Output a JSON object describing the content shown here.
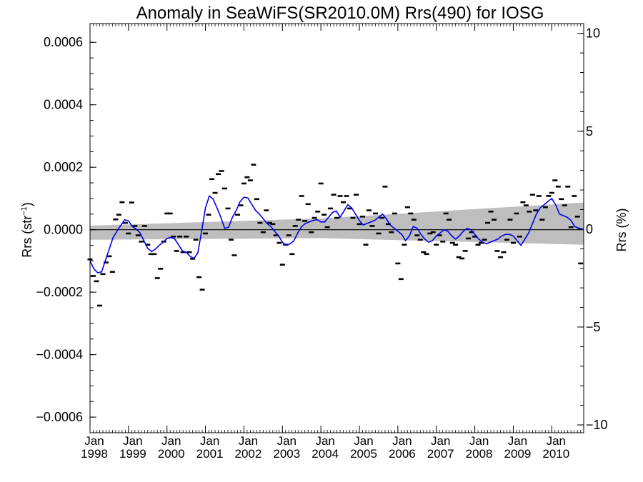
{
  "chart_data": {
    "type": "scatter",
    "title": "Anomaly in SeaWiFS(SR2010.0M) Rrs(490) for IOSG",
    "ylabel_left": {
      "base": "Rrs (str",
      "sup": "−1",
      "end": ")"
    },
    "ylabel_right": "Rrs (%)",
    "xlim": [
      1998.0,
      2010.83
    ],
    "ylim_left": [
      -0.00065,
      0.00066
    ],
    "ylim_right": [
      -10.4,
      10.5
    ],
    "yticks_left": [
      {
        "value": 0.0006,
        "label": "0.0006"
      },
      {
        "value": 0.0004,
        "label": "0.0004"
      },
      {
        "value": 0.0002,
        "label": "0.0002"
      },
      {
        "value": 0.0,
        "label": "0.0000"
      },
      {
        "value": -0.0002,
        "label": "−0.0002"
      },
      {
        "value": -0.0004,
        "label": "−0.0004"
      },
      {
        "value": -0.0006,
        "label": "−0.0006"
      }
    ],
    "yticks_right": [
      {
        "value": 10,
        "label": "10"
      },
      {
        "value": 5,
        "label": "5"
      },
      {
        "value": 0,
        "label": "0"
      },
      {
        "value": -5,
        "label": "−5"
      },
      {
        "value": -10,
        "label": "−10"
      }
    ],
    "xticks": [
      {
        "value": 1998,
        "month": "Jan",
        "year": "1998"
      },
      {
        "value": 1999,
        "month": "Jan",
        "year": "1999"
      },
      {
        "value": 2000,
        "month": "Jan",
        "year": "2000"
      },
      {
        "value": 2001,
        "month": "Jan",
        "year": "2001"
      },
      {
        "value": 2002,
        "month": "Jan",
        "year": "2002"
      },
      {
        "value": 2003,
        "month": "Jan",
        "year": "2003"
      },
      {
        "value": 2004,
        "month": "Jan",
        "year": "2004"
      },
      {
        "value": 2005,
        "month": "Jan",
        "year": "2005"
      },
      {
        "value": 2006,
        "month": "Jan",
        "year": "2006"
      },
      {
        "value": 2007,
        "month": "Jan",
        "year": "2007"
      },
      {
        "value": 2008,
        "month": "Jan",
        "year": "2008"
      },
      {
        "value": 2009,
        "month": "Jan",
        "year": "2009"
      },
      {
        "value": 2010,
        "month": "Jan",
        "year": "2010"
      }
    ],
    "zero_line": 0.0,
    "colors": {
      "smooth": "#0000ee",
      "band": "#bebebe",
      "points": "#000000"
    },
    "band": {
      "x": [
        1998.0,
        2004.0,
        2010.83
      ],
      "upper": [
        1.3e-05,
        3.6e-05,
        8.7e-05
      ],
      "lower": [
        -3.2e-05,
        -2.7e-05,
        -4.8e-05
      ]
    },
    "points": {
      "x": [
        1998.0,
        1998.083,
        1998.167,
        1998.25,
        1998.333,
        1998.417,
        1998.5,
        1998.583,
        1998.667,
        1998.75,
        1998.833,
        1998.917,
        1999.0,
        1999.083,
        1999.167,
        1999.25,
        1999.333,
        1999.417,
        1999.5,
        1999.583,
        1999.667,
        1999.75,
        1999.833,
        1999.917,
        2000.0,
        2000.083,
        2000.167,
        2000.25,
        2000.333,
        2000.417,
        2000.5,
        2000.583,
        2000.667,
        2000.75,
        2000.833,
        2000.917,
        2001.0,
        2001.083,
        2001.167,
        2001.25,
        2001.333,
        2001.417,
        2001.5,
        2001.583,
        2001.667,
        2001.75,
        2001.833,
        2001.917,
        2002.0,
        2002.083,
        2002.167,
        2002.25,
        2002.333,
        2002.417,
        2002.5,
        2002.583,
        2002.667,
        2002.75,
        2002.833,
        2002.917,
        2003.0,
        2003.083,
        2003.167,
        2003.25,
        2003.333,
        2003.417,
        2003.5,
        2003.583,
        2003.667,
        2003.75,
        2003.833,
        2003.917,
        2004.0,
        2004.083,
        2004.167,
        2004.25,
        2004.333,
        2004.417,
        2004.5,
        2004.583,
        2004.667,
        2004.75,
        2004.833,
        2004.917,
        2005.0,
        2005.083,
        2005.167,
        2005.25,
        2005.333,
        2005.417,
        2005.5,
        2005.583,
        2005.667,
        2005.75,
        2005.833,
        2005.917,
        2006.0,
        2006.083,
        2006.167,
        2006.25,
        2006.333,
        2006.417,
        2006.5,
        2006.583,
        2006.667,
        2006.75,
        2006.833,
        2006.917,
        2007.0,
        2007.083,
        2007.167,
        2007.25,
        2007.333,
        2007.417,
        2007.5,
        2007.583,
        2007.667,
        2007.75,
        2007.833,
        2007.917,
        2008.0,
        2008.083,
        2008.167,
        2008.25,
        2008.333,
        2008.417,
        2008.5,
        2008.583,
        2008.667,
        2008.75,
        2008.833,
        2008.917,
        2009.0,
        2009.083,
        2009.167,
        2009.25,
        2009.333,
        2009.417,
        2009.5,
        2009.583,
        2009.667,
        2009.75,
        2009.833,
        2009.917,
        2010.0,
        2010.083,
        2010.167,
        2010.25,
        2010.333,
        2010.417,
        2010.5,
        2010.583,
        2010.667,
        2010.75
      ],
      "y": [
        -9.5e-05,
        -0.000148,
        -0.000165,
        -0.000243,
        -0.000142,
        -0.000105,
        -8.5e-05,
        -0.000135,
        3.3e-05,
        4.8e-05,
        8.8e-05,
        2.2e-05,
        -1.2e-05,
        8.7e-05,
        1.2e-05,
        -1.8e-05,
        -3.8e-05,
        1.2e-05,
        -4.8e-05,
        -7.8e-05,
        -7.8e-05,
        -0.000155,
        -0.000125,
        -3.8e-05,
        5.2e-05,
        5.2e-05,
        -2.2e-05,
        -6.8e-05,
        -2.2e-05,
        -7.2e-05,
        -2.2e-05,
        -7.2e-05,
        -9.3e-05,
        -3.2e-05,
        -0.000152,
        -0.000192,
        -1.2e-05,
        4.8e-05,
        0.000162,
        0.000118,
        0.000178,
        0.000188,
        0.000132,
        6.8e-05,
        -3.2e-05,
        -8.2e-05,
        4.8e-05,
        7.8e-05,
        0.000148,
        0.000168,
        0.000158,
        0.000208,
        9.8e-05,
        2.2e-05,
        -8e-06,
        6.2e-05,
        2.2e-05,
        1.8e-05,
        -1.8e-05,
        -4.2e-05,
        -0.000112,
        -4.8e-05,
        -1.8e-05,
        -7.8e-05,
        1.2e-05,
        3.2e-05,
        0.000108,
        2.8e-05,
        8.2e-05,
        -8e-06,
        3.8e-05,
        5.8e-05,
        0.000148,
        4.8e-05,
        8e-06,
        6.8e-05,
        0.000112,
        3.8e-05,
        0.000108,
        8.8e-05,
        0.000108,
        6.8e-05,
        3.8e-05,
        0.000112,
        1.8e-05,
        4.2e-05,
        -4.8e-05,
        6.2e-05,
        1.2e-05,
        5.2e-05,
        -1.2e-05,
        3.8e-05,
        0.000138,
        1.8e-05,
        -8e-06,
        5.2e-05,
        -0.000108,
        -0.000158,
        -4.8e-05,
        7.2e-05,
        5.2e-05,
        3.2e-05,
        -1.8e-05,
        -3.2e-05,
        -7.2e-05,
        -7.8e-05,
        -1.2e-05,
        -8e-06,
        -4.8e-05,
        -1.8e-05,
        -3.8e-05,
        5.2e-05,
        3.2e-05,
        -4.2e-05,
        -4.8e-05,
        -8.8e-05,
        -9.2e-05,
        -6.8e-05,
        -2.8e-05,
        -8e-06,
        -2.2e-05,
        -4.8e-05,
        -4.2e-05,
        -3.2e-05,
        2.2e-05,
        5.8e-05,
        3.2e-05,
        -6.8e-05,
        -8.8e-05,
        -7.2e-05,
        -3.2e-05,
        3.2e-05,
        -4.2e-05,
        5.2e-05,
        -2.2e-05,
        8.8e-05,
        7.8e-05,
        5.8e-05,
        0.000112,
        6.2e-05,
        0.000108,
        3.2e-05,
        7.2e-05,
        0.000108,
        0.000118,
        0.000158,
        0.000138,
        9.8e-05,
        7.8e-05,
        0.000138,
        8e-06,
        0.000108,
        4.2e-05,
        -0.000108
      ]
    },
    "smooth": {
      "x": [
        1998.0,
        1998.1,
        1998.2,
        1998.3,
        1998.45,
        1998.6,
        1998.75,
        1998.9,
        1999.0,
        1999.1,
        1999.2,
        1999.3,
        1999.4,
        1999.5,
        1999.6,
        1999.7,
        1999.8,
        1999.9,
        2000.0,
        2000.1,
        2000.2,
        2000.3,
        2000.4,
        2000.5,
        2000.6,
        2000.7,
        2000.8,
        2000.9,
        2001.0,
        2001.1,
        2001.2,
        2001.3,
        2001.4,
        2001.5,
        2001.6,
        2001.7,
        2001.8,
        2001.9,
        2002.0,
        2002.1,
        2002.2,
        2002.3,
        2002.4,
        2002.5,
        2002.6,
        2002.7,
        2002.8,
        2002.9,
        2003.0,
        2003.1,
        2003.2,
        2003.3,
        2003.4,
        2003.5,
        2003.6,
        2003.7,
        2003.8,
        2003.9,
        2004.0,
        2004.1,
        2004.2,
        2004.3,
        2004.4,
        2004.5,
        2004.6,
        2004.7,
        2004.8,
        2004.9,
        2005.0,
        2005.1,
        2005.2,
        2005.3,
        2005.4,
        2005.5,
        2005.6,
        2005.7,
        2005.8,
        2005.9,
        2006.0,
        2006.1,
        2006.2,
        2006.3,
        2006.4,
        2006.5,
        2006.6,
        2006.7,
        2006.8,
        2006.9,
        2007.0,
        2007.1,
        2007.2,
        2007.3,
        2007.4,
        2007.5,
        2007.6,
        2007.7,
        2007.8,
        2007.9,
        2008.0,
        2008.1,
        2008.2,
        2008.3,
        2008.4,
        2008.5,
        2008.6,
        2008.7,
        2008.8,
        2008.9,
        2009.0,
        2009.1,
        2009.2,
        2009.3,
        2009.4,
        2009.5,
        2009.6,
        2009.7,
        2009.8,
        2009.9,
        2010.0,
        2010.1,
        2010.2,
        2010.3,
        2010.4,
        2010.5,
        2010.6,
        2010.7,
        2010.83
      ],
      "y": [
        -0.0001,
        -0.000125,
        -0.000138,
        -0.000135,
        -8e-05,
        -2.5e-05,
        5e-06,
        3.2e-05,
        2.8e-05,
        1e-05,
        2e-06,
        -1e-05,
        -3.5e-05,
        -6e-05,
        -7e-05,
        -6.2e-05,
        -5e-05,
        -4e-05,
        -2.8e-05,
        -2.4e-05,
        -3e-05,
        -4.8e-05,
        -6.8e-05,
        -7.2e-05,
        -8.5e-05,
        -9.2e-05,
        -7.5e-05,
        -5e-06,
        7e-05,
        0.000108,
        9.8e-05,
        7e-05,
        4e-05,
        4e-06,
        8e-06,
        4e-05,
        6.2e-05,
        9e-05,
        0.000104,
        0.000102,
        8.2e-05,
        6.2e-05,
        5e-05,
        3.5e-05,
        2e-05,
        1e-05,
        -5e-06,
        -2e-05,
        -4e-05,
        -5e-05,
        -4.5e-05,
        -3.5e-05,
        -1e-05,
        1e-05,
        2e-05,
        2.5e-05,
        3e-05,
        3.2e-05,
        2.5e-05,
        2.5e-05,
        4e-05,
        5.5e-05,
        6e-05,
        4e-05,
        6e-05,
        8e-05,
        7e-05,
        5e-05,
        3e-05,
        1.5e-05,
        2e-05,
        2.5e-05,
        3e-05,
        4e-05,
        5e-05,
        3.5e-05,
        1.5e-05,
        5e-06,
        -5e-06,
        -1.5e-05,
        -3.5e-05,
        -2e-05,
        1e-05,
        5e-06,
        -1.5e-05,
        -3e-05,
        -4e-05,
        -3.5e-05,
        -2e-05,
        -1e-05,
        0.0,
        -5e-06,
        -2e-05,
        -3e-05,
        -2e-05,
        -5e-06,
        4e-06,
        0.0,
        -1.5e-05,
        -3e-05,
        -4e-05,
        -4.5e-05,
        -4e-05,
        -3.5e-05,
        -3e-05,
        -2e-05,
        -1.5e-05,
        -1.5e-05,
        -2e-05,
        -3.5e-05,
        -5e-05,
        -3e-05,
        -1e-05,
        2e-05,
        5e-05,
        7e-05,
        8e-05,
        9e-05,
        0.0001,
        8e-05,
        5e-05,
        4.5e-05,
        4e-05,
        3e-05,
        1e-05,
        5e-06,
        0.0
      ]
    }
  }
}
